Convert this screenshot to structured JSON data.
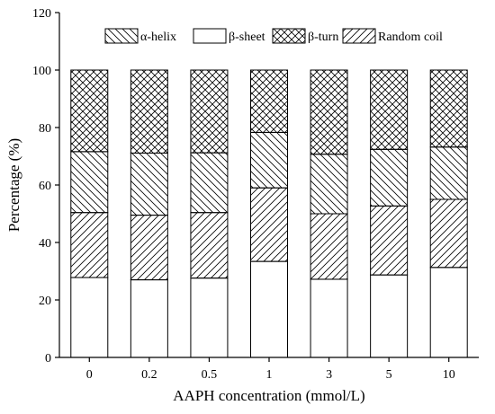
{
  "chart_data": {
    "type": "bar",
    "stacked": true,
    "xlabel": "AAPH concentration (mmol/L)",
    "ylabel": "Percentage (%)",
    "ylim": [
      0,
      120
    ],
    "yticks": [
      0,
      20,
      40,
      60,
      80,
      100,
      120
    ],
    "grid": false,
    "legend_position": "top",
    "categories": [
      "0",
      "0.2",
      "0.5",
      "1",
      "3",
      "5",
      "10"
    ],
    "series": [
      {
        "name": "β-sheet",
        "pattern": "blank",
        "values": [
          27.8,
          27.0,
          27.6,
          33.4,
          27.2,
          28.7,
          31.3
        ]
      },
      {
        "name": "Random coil",
        "pattern": "diag-right",
        "values": [
          22.6,
          22.5,
          22.8,
          25.6,
          22.8,
          24.0,
          23.7
        ]
      },
      {
        "name": "α-helix",
        "pattern": "diag-left",
        "values": [
          21.2,
          21.6,
          20.8,
          19.3,
          20.7,
          19.7,
          18.2
        ]
      },
      {
        "name": "β-turn",
        "pattern": "cross",
        "values": [
          28.4,
          28.9,
          28.8,
          21.7,
          29.3,
          27.6,
          26.8
        ]
      }
    ],
    "legend_order": [
      "α-helix",
      "β-sheet",
      "β-turn",
      "Random coil"
    ]
  }
}
